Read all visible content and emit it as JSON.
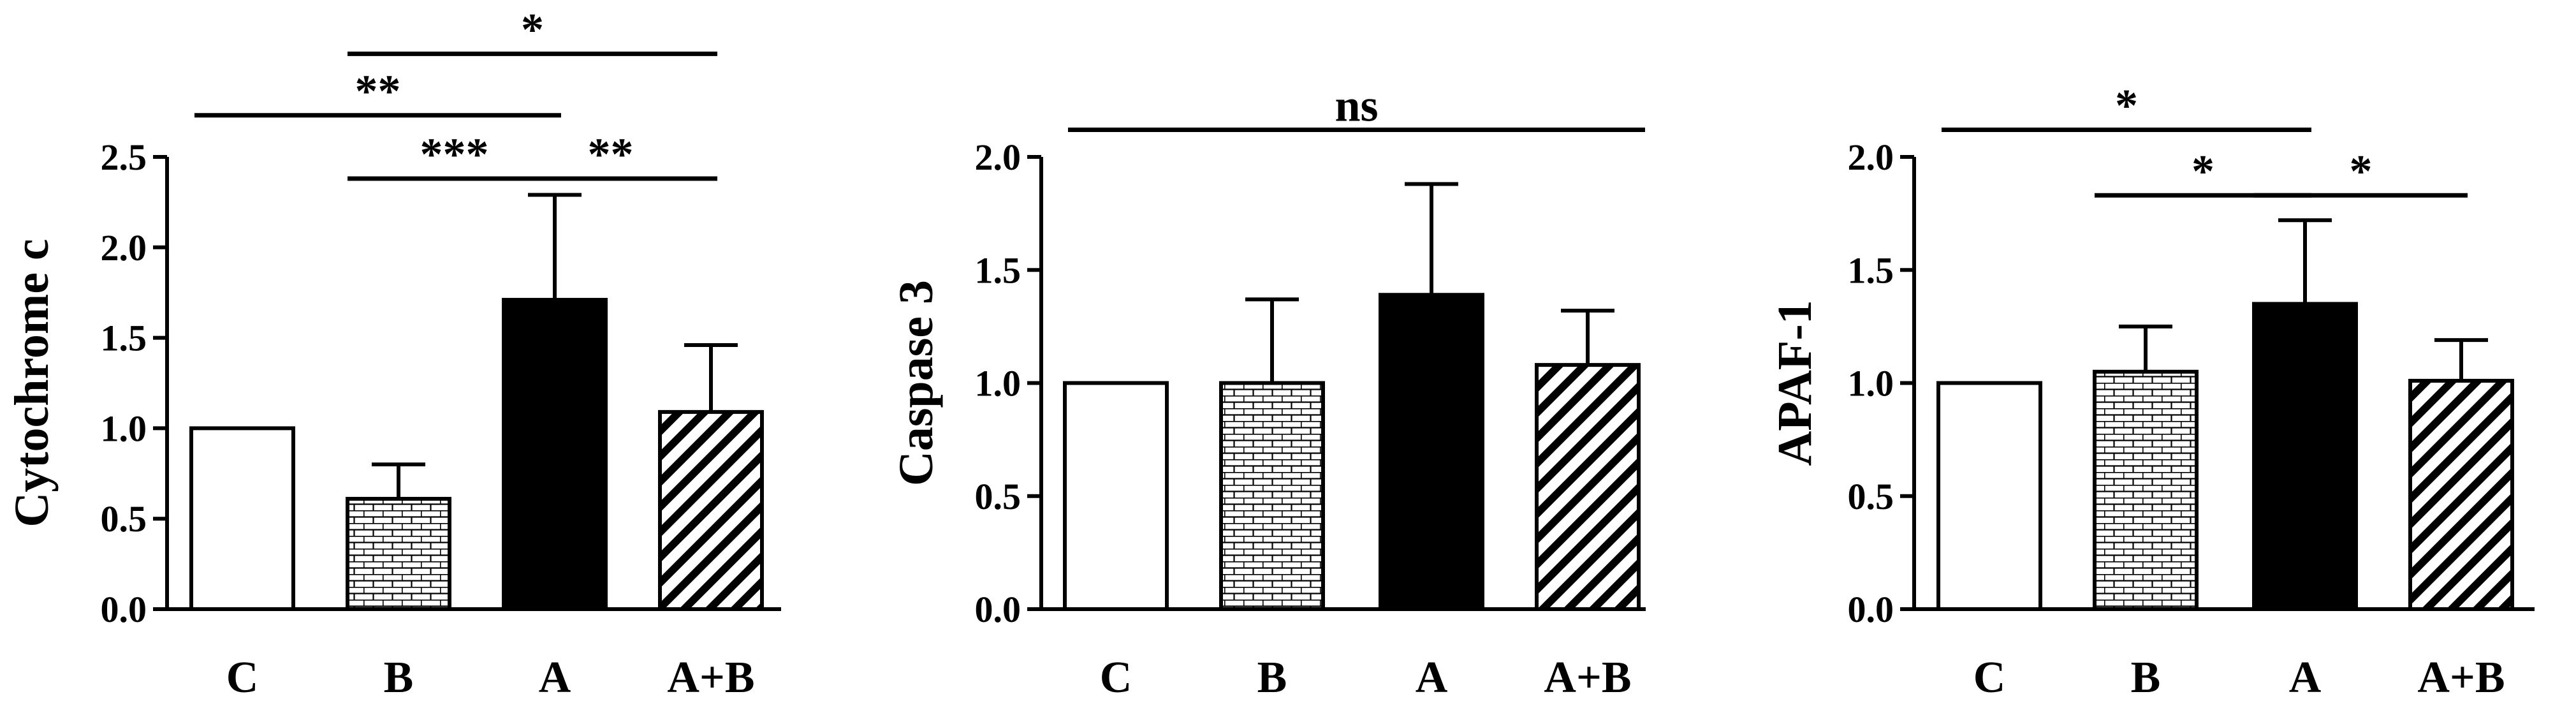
{
  "chart_data": [
    {
      "type": "bar",
      "title": "",
      "xlabel": "",
      "ylabel": "Cytochrome c",
      "categories": [
        "C",
        "B",
        "A",
        "A+B"
      ],
      "values": [
        1.0,
        0.61,
        1.71,
        1.09
      ],
      "errors_upper": [
        0.0,
        0.19,
        0.58,
        0.37
      ],
      "ylim": [
        0,
        2.5
      ],
      "yticks": [
        "0.0",
        "0.5",
        "1.0",
        "1.5",
        "2.0",
        "2.5"
      ],
      "ytick_values": [
        0,
        0.5,
        1.0,
        1.5,
        2.0,
        2.5
      ],
      "fills": [
        "white",
        "brick",
        "black",
        "diagonal"
      ],
      "significance": [
        {
          "from": 0,
          "to": 2,
          "label": "**",
          "y": 2.73
        },
        {
          "from": 1,
          "to": 3,
          "label": "*",
          "y": 3.07
        },
        {
          "from": 1,
          "to": 2,
          "label": "***",
          "y": 2.38
        },
        {
          "from": 2,
          "to": 3,
          "label": "**",
          "y": 2.38
        }
      ]
    },
    {
      "type": "bar",
      "title": "",
      "xlabel": "",
      "ylabel": "Caspase 3",
      "categories": [
        "C",
        "B",
        "A",
        "A+B"
      ],
      "values": [
        1.0,
        1.0,
        1.39,
        1.08
      ],
      "errors_upper": [
        0.0,
        0.37,
        0.49,
        0.24
      ],
      "ylim": [
        0,
        2.0
      ],
      "yticks": [
        "0.0",
        "0.5",
        "1.0",
        "1.5",
        "2.0"
      ],
      "ytick_values": [
        0,
        0.5,
        1.0,
        1.5,
        2.0
      ],
      "fills": [
        "white",
        "brick",
        "black",
        "diagonal"
      ],
      "significance": [
        {
          "from": 0,
          "to": 3,
          "label": "ns",
          "y": 2.12
        }
      ]
    },
    {
      "type": "bar",
      "title": "",
      "xlabel": "",
      "ylabel": "APAF-1",
      "categories": [
        "C",
        "B",
        "A",
        "A+B"
      ],
      "values": [
        1.0,
        1.05,
        1.35,
        1.01
      ],
      "errors_upper": [
        0.0,
        0.2,
        0.37,
        0.18
      ],
      "ylim": [
        0,
        2.0
      ],
      "yticks": [
        "0.0",
        "0.5",
        "1.0",
        "1.5",
        "2.0"
      ],
      "ytick_values": [
        0,
        0.5,
        1.0,
        1.5,
        2.0
      ],
      "fills": [
        "white",
        "brick",
        "black",
        "diagonal"
      ],
      "significance": [
        {
          "from": 0,
          "to": 2,
          "label": "*",
          "y": 2.12
        },
        {
          "from": 1,
          "to": 2,
          "label": "*",
          "y": 1.83
        },
        {
          "from": 2,
          "to": 3,
          "label": "*",
          "y": 1.83
        }
      ]
    }
  ]
}
